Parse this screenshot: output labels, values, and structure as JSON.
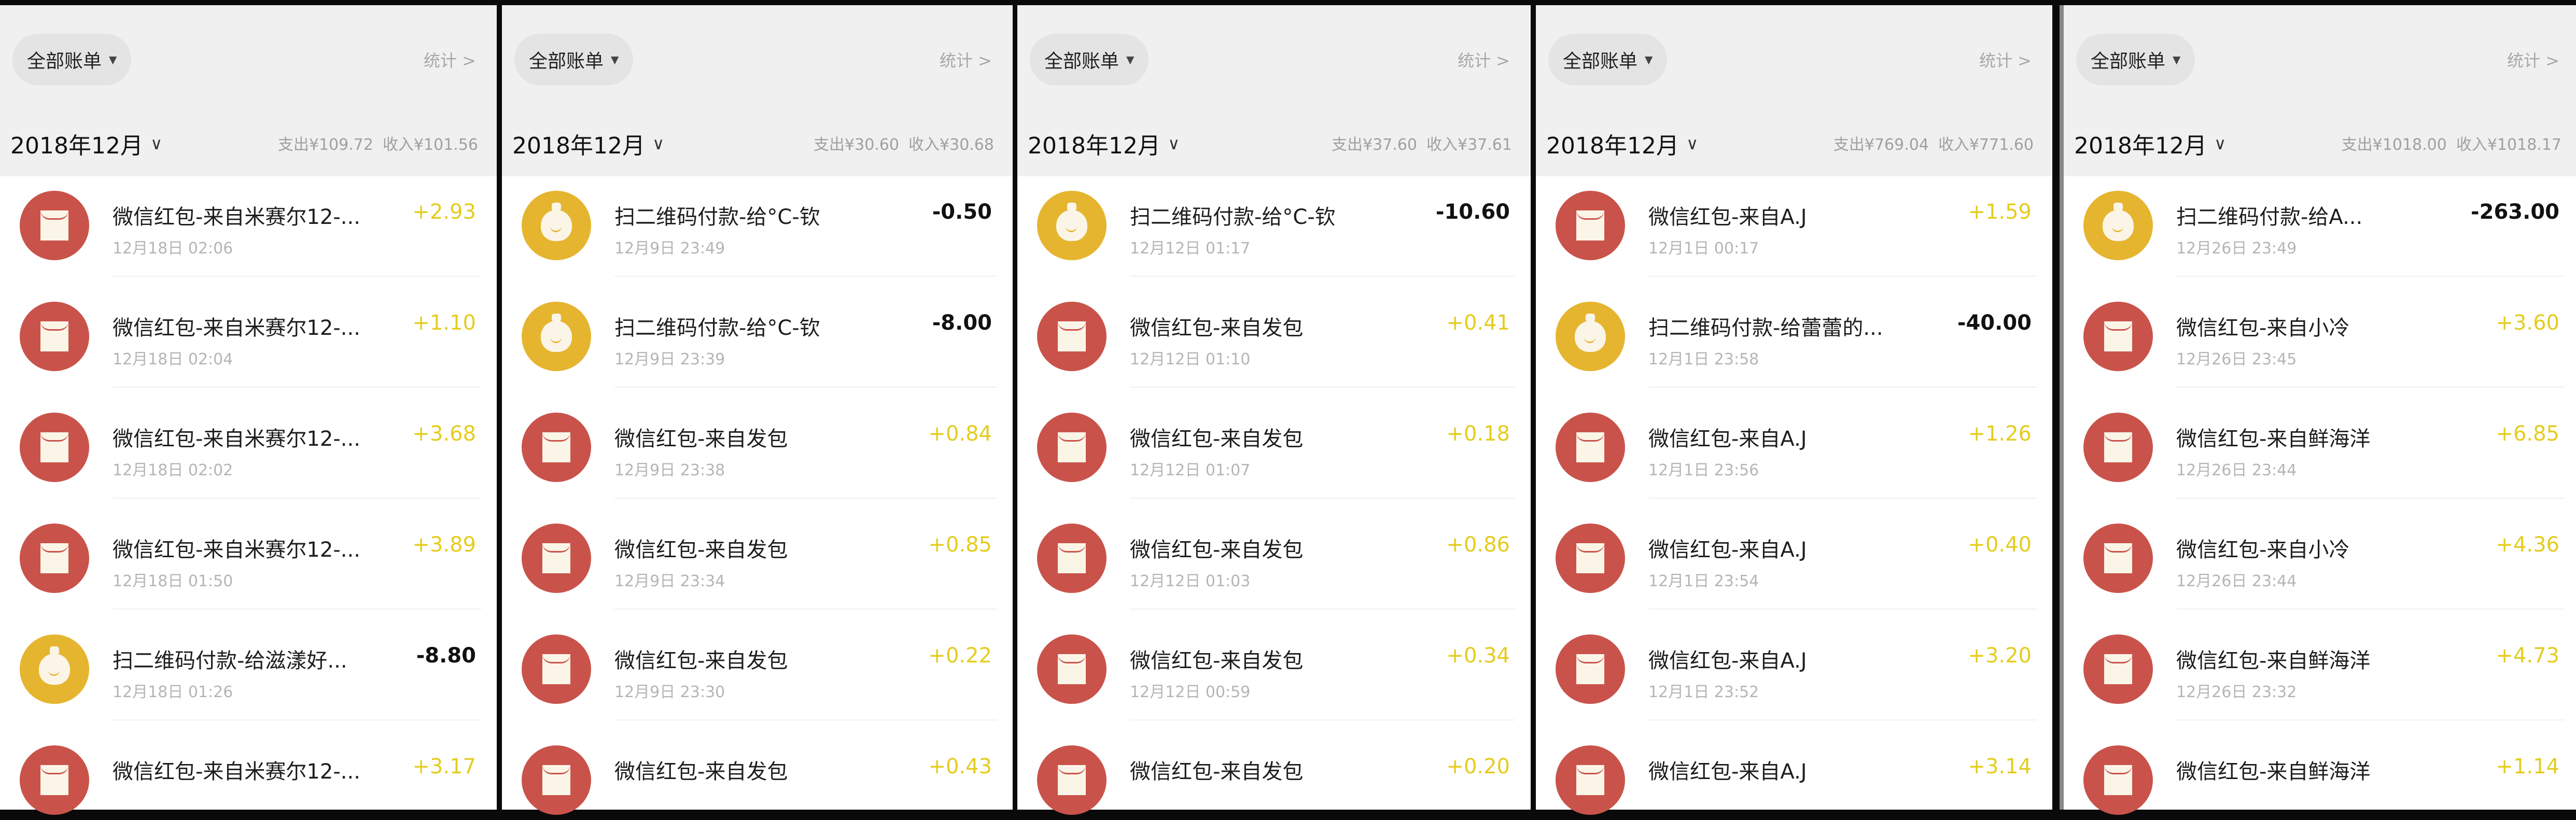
{
  "colors": {
    "red_packet": "#c9534b",
    "qr_pay": "#e6b52f",
    "income": "#e5cc1e",
    "expense": "#111111"
  },
  "panels": [
    {
      "filter_label": "全部账单",
      "stats_label": "统计 >",
      "month": "2018年12月",
      "expense": "支出¥109.72",
      "income": "收入¥101.56",
      "rows": [
        {
          "icon": "red-packet-icon",
          "title": "微信红包-来自米赛尔12-...",
          "date": "12月18日 02:06",
          "amount": "+2.93",
          "type": "in"
        },
        {
          "icon": "red-packet-icon",
          "title": "微信红包-来自米赛尔12-...",
          "date": "12月18日 02:04",
          "amount": "+1.10",
          "type": "in"
        },
        {
          "icon": "red-packet-icon",
          "title": "微信红包-来自米赛尔12-...",
          "date": "12月18日 02:02",
          "amount": "+3.68",
          "type": "in"
        },
        {
          "icon": "red-packet-icon",
          "title": "微信红包-来自米赛尔12-...",
          "date": "12月18日 01:50",
          "amount": "+3.89",
          "type": "in"
        },
        {
          "icon": "money-bag-icon",
          "title": "扫二维码付款-给滋漾好...",
          "date": "12月18日 01:26",
          "amount": "-8.80",
          "type": "out"
        },
        {
          "icon": "red-packet-icon",
          "title": "微信红包-来自米赛尔12-...",
          "date": "",
          "amount": "+3.17",
          "type": "in"
        }
      ]
    },
    {
      "filter_label": "全部账单",
      "stats_label": "统计 >",
      "month": "2018年12月",
      "expense": "支出¥30.60",
      "income": "收入¥30.68",
      "rows": [
        {
          "icon": "money-bag-icon",
          "title": "扫二维码付款-给°C-钦",
          "date": "12月9日 23:49",
          "amount": "-0.50",
          "type": "out"
        },
        {
          "icon": "money-bag-icon",
          "title": "扫二维码付款-给°C-钦",
          "date": "12月9日 23:39",
          "amount": "-8.00",
          "type": "out"
        },
        {
          "icon": "red-packet-icon",
          "title": "微信红包-来自发包",
          "date": "12月9日 23:38",
          "amount": "+0.84",
          "type": "in"
        },
        {
          "icon": "red-packet-icon",
          "title": "微信红包-来自发包",
          "date": "12月9日 23:34",
          "amount": "+0.85",
          "type": "in"
        },
        {
          "icon": "red-packet-icon",
          "title": "微信红包-来自发包",
          "date": "12月9日 23:30",
          "amount": "+0.22",
          "type": "in"
        },
        {
          "icon": "red-packet-icon",
          "title": "微信红包-来自发包",
          "date": "",
          "amount": "+0.43",
          "type": "in"
        }
      ]
    },
    {
      "filter_label": "全部账单",
      "stats_label": "统计 >",
      "month": "2018年12月",
      "expense": "支出¥37.60",
      "income": "收入¥37.61",
      "rows": [
        {
          "icon": "money-bag-icon",
          "title": "扫二维码付款-给°C-钦",
          "date": "12月12日 01:17",
          "amount": "-10.60",
          "type": "out"
        },
        {
          "icon": "red-packet-icon",
          "title": "微信红包-来自发包",
          "date": "12月12日 01:10",
          "amount": "+0.41",
          "type": "in"
        },
        {
          "icon": "red-packet-icon",
          "title": "微信红包-来自发包",
          "date": "12月12日 01:07",
          "amount": "+0.18",
          "type": "in"
        },
        {
          "icon": "red-packet-icon",
          "title": "微信红包-来自发包",
          "date": "12月12日 01:03",
          "amount": "+0.86",
          "type": "in"
        },
        {
          "icon": "red-packet-icon",
          "title": "微信红包-来自发包",
          "date": "12月12日 00:59",
          "amount": "+0.34",
          "type": "in"
        },
        {
          "icon": "red-packet-icon",
          "title": "微信红包-来自发包",
          "date": "",
          "amount": "+0.20",
          "type": "in"
        }
      ]
    },
    {
      "filter_label": "全部账单",
      "stats_label": "统计 >",
      "month": "2018年12月",
      "expense": "支出¥769.04",
      "income": "收入¥771.60",
      "rows": [
        {
          "icon": "red-packet-icon",
          "title": "微信红包-来自A.J",
          "date": "12月1日 00:17",
          "amount": "+1.59",
          "type": "in"
        },
        {
          "icon": "money-bag-icon",
          "title": "扫二维码付款-给蕾蕾的...",
          "date": "12月1日 23:58",
          "amount": "-40.00",
          "type": "out"
        },
        {
          "icon": "red-packet-icon",
          "title": "微信红包-来自A.J",
          "date": "12月1日 23:56",
          "amount": "+1.26",
          "type": "in"
        },
        {
          "icon": "red-packet-icon",
          "title": "微信红包-来自A.J",
          "date": "12月1日 23:54",
          "amount": "+0.40",
          "type": "in"
        },
        {
          "icon": "red-packet-icon",
          "title": "微信红包-来自A.J",
          "date": "12月1日 23:52",
          "amount": "+3.20",
          "type": "in"
        },
        {
          "icon": "red-packet-icon",
          "title": "微信红包-来自A.J",
          "date": "",
          "amount": "+3.14",
          "type": "in"
        }
      ]
    },
    {
      "filter_label": "全部账单",
      "stats_label": "统计 >",
      "month": "2018年12月",
      "expense": "支出¥1018.00",
      "income": "收入¥1018.17",
      "rows": [
        {
          "icon": "money-bag-icon",
          "title": "扫二维码付款-给A...",
          "date": "12月26日 23:49",
          "amount": "-263.00",
          "type": "out"
        },
        {
          "icon": "red-packet-icon",
          "title": "微信红包-来自小冷",
          "date": "12月26日 23:45",
          "amount": "+3.60",
          "type": "in"
        },
        {
          "icon": "red-packet-icon",
          "title": "微信红包-来自鲜海洋",
          "date": "12月26日 23:44",
          "amount": "+6.85",
          "type": "in"
        },
        {
          "icon": "red-packet-icon",
          "title": "微信红包-来自小冷",
          "date": "12月26日 23:44",
          "amount": "+4.36",
          "type": "in"
        },
        {
          "icon": "red-packet-icon",
          "title": "微信红包-来自鲜海洋",
          "date": "12月26日 23:32",
          "amount": "+4.73",
          "type": "in"
        },
        {
          "icon": "red-packet-icon",
          "title": "微信红包-来自鲜海洋",
          "date": "",
          "amount": "+1.14",
          "type": "in"
        }
      ]
    }
  ]
}
